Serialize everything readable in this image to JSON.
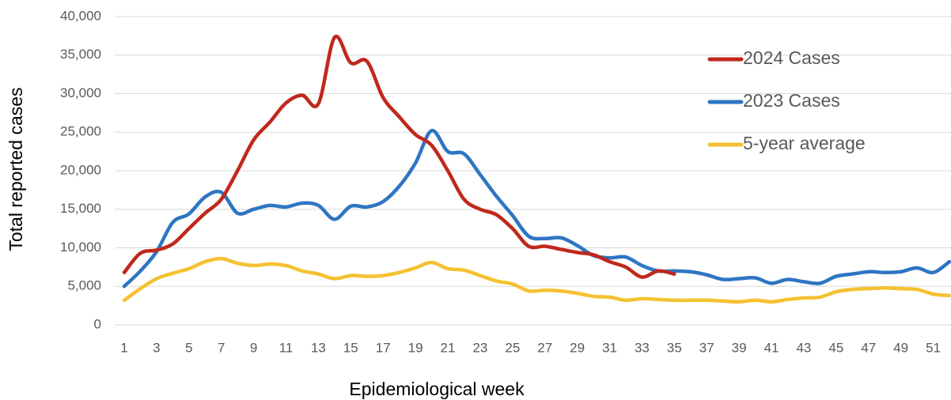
{
  "chart_data": {
    "type": "line",
    "x_label": "Epidemiological week",
    "y_label": "Total reported cases",
    "x": [
      1,
      2,
      3,
      4,
      5,
      6,
      7,
      8,
      9,
      10,
      11,
      12,
      13,
      14,
      15,
      16,
      17,
      18,
      19,
      20,
      21,
      22,
      23,
      24,
      25,
      26,
      27,
      28,
      29,
      30,
      31,
      32,
      33,
      34,
      35,
      36,
      37,
      38,
      39,
      40,
      41,
      42,
      43,
      44,
      45,
      46,
      47,
      48,
      49,
      50,
      51,
      52
    ],
    "xlim": [
      1,
      52
    ],
    "xticks": [
      1,
      3,
      5,
      7,
      9,
      11,
      13,
      15,
      17,
      19,
      21,
      23,
      25,
      27,
      29,
      31,
      33,
      35,
      37,
      39,
      41,
      43,
      45,
      47,
      49,
      51
    ],
    "ylim": [
      0,
      40000
    ],
    "yticks": [
      0,
      {
        "value": 5000,
        "label": "5,000"
      },
      {
        "value": 10000,
        "label": "10,000"
      },
      {
        "value": 15000,
        "label": "15,000"
      },
      {
        "value": 20000,
        "label": "20,000"
      },
      {
        "value": 25000,
        "label": "25,000"
      },
      {
        "value": 30000,
        "label": "30,000"
      },
      {
        "value": 35000,
        "label": "35,000"
      },
      {
        "value": 40000,
        "label": "40,000"
      }
    ],
    "grid": true,
    "legend": "upper right",
    "series": [
      {
        "name": "2024 Cases",
        "color": "#c0281c",
        "values": [
          6800,
          9300,
          9700,
          10500,
          12500,
          14500,
          16300,
          20000,
          24000,
          26300,
          28800,
          29800,
          28700,
          37300,
          34000,
          34200,
          29500,
          27000,
          24700,
          23300,
          20000,
          16300,
          15000,
          14300,
          12500,
          10200,
          10200,
          9800,
          9400,
          9100,
          8200,
          7500,
          6200,
          7000,
          6600,
          null,
          null,
          null,
          null,
          null,
          null,
          null,
          null,
          null,
          null,
          null,
          null,
          null,
          null,
          null,
          null,
          null
        ]
      },
      {
        "name": "2023 Cases",
        "color": "#2e75c3",
        "values": [
          5000,
          7000,
          9500,
          13300,
          14400,
          16600,
          17200,
          14500,
          15000,
          15500,
          15300,
          15800,
          15500,
          13700,
          15400,
          15300,
          16000,
          18000,
          21000,
          25200,
          22500,
          22200,
          19500,
          16700,
          14200,
          11500,
          11200,
          11300,
          10300,
          9000,
          8700,
          8800,
          7700,
          7000,
          7000,
          6900,
          6500,
          5900,
          6000,
          6100,
          5400,
          5900,
          5600,
          5400,
          6300,
          6600,
          6900,
          6800,
          6900,
          7400,
          6800,
          8200
        ]
      },
      {
        "name": "5-year average",
        "color": "#f5c131",
        "values": [
          3200,
          4700,
          6000,
          6700,
          7300,
          8200,
          8600,
          8000,
          7700,
          7900,
          7700,
          7000,
          6600,
          6000,
          6400,
          6300,
          6400,
          6800,
          7400,
          8100,
          7300,
          7100,
          6400,
          5700,
          5300,
          4400,
          4500,
          4400,
          4100,
          3700,
          3600,
          3200,
          3400,
          3300,
          3200,
          3200,
          3200,
          3100,
          3000,
          3200,
          3000,
          3300,
          3500,
          3600,
          4300,
          4600,
          4700,
          4800,
          4700,
          4600,
          4000,
          3800
        ]
      }
    ]
  }
}
